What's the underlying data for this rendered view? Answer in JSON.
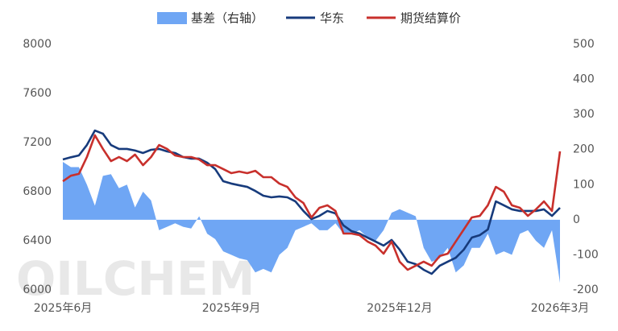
{
  "chart_data": {
    "type": "line",
    "watermark": "OILCHEM",
    "categories": [
      "2025年6月",
      null,
      null,
      null,
      null,
      null,
      null,
      null,
      null,
      null,
      null,
      null,
      null,
      null,
      null,
      null,
      null,
      null,
      null,
      null,
      null,
      "2025年9月",
      null,
      null,
      null,
      null,
      null,
      null,
      null,
      null,
      null,
      null,
      null,
      null,
      null,
      null,
      null,
      null,
      null,
      null,
      null,
      null,
      "2025年12月",
      null,
      null,
      null,
      null,
      null,
      null,
      null,
      null,
      null,
      null,
      null,
      null,
      null,
      null,
      null,
      null,
      null,
      null,
      null,
      "2026年3月"
    ],
    "series": [
      {
        "name": "基差（右轴）",
        "type": "area",
        "axis": "y2",
        "color": "#6fa6f4",
        "values": [
          165,
          150,
          150,
          100,
          40,
          125,
          130,
          90,
          100,
          35,
          80,
          55,
          -30,
          -20,
          -10,
          -20,
          -25,
          10,
          -40,
          -55,
          -90,
          -100,
          -110,
          -115,
          -150,
          -140,
          -150,
          -100,
          -80,
          -30,
          -20,
          -10,
          -30,
          -30,
          -10,
          -40,
          -40,
          -30,
          -50,
          -60,
          -30,
          20,
          30,
          20,
          10,
          -80,
          -120,
          -110,
          -80,
          -150,
          -130,
          -80,
          -80,
          -40,
          -100,
          -90,
          -100,
          -40,
          -30,
          -60,
          -80,
          -30,
          -180
        ]
      },
      {
        "name": "华东",
        "type": "line",
        "color": "#173b7c",
        "values": [
          7062,
          7080,
          7095,
          7180,
          7298,
          7272,
          7180,
          7148,
          7148,
          7135,
          7115,
          7141,
          7148,
          7128,
          7115,
          7082,
          7069,
          7069,
          7036,
          6984,
          6885,
          6866,
          6852,
          6839,
          6806,
          6767,
          6754,
          6761,
          6754,
          6721,
          6643,
          6577,
          6603,
          6643,
          6623,
          6525,
          6479,
          6459,
          6426,
          6394,
          6361,
          6407,
          6328,
          6230,
          6210,
          6164,
          6131,
          6197,
          6230,
          6262,
          6328,
          6426,
          6446,
          6492,
          6721,
          6689,
          6656,
          6643,
          6643,
          6643,
          6656,
          6603,
          6669
        ]
      },
      {
        "name": "期货结算价",
        "type": "line",
        "color": "#c8302c",
        "values": [
          6885,
          6930,
          6945,
          7082,
          7259,
          7148,
          7049,
          7082,
          7049,
          7102,
          7016,
          7082,
          7180,
          7148,
          7095,
          7082,
          7082,
          7062,
          7016,
          7016,
          6984,
          6951,
          6964,
          6951,
          6970,
          6918,
          6918,
          6866,
          6839,
          6754,
          6708,
          6590,
          6669,
          6689,
          6643,
          6459,
          6459,
          6446,
          6394,
          6361,
          6295,
          6394,
          6230,
          6164,
          6197,
          6230,
          6197,
          6276,
          6295,
          6394,
          6492,
          6590,
          6603,
          6689,
          6839,
          6800,
          6689,
          6669,
          6603,
          6656,
          6721,
          6643,
          7128
        ]
      }
    ],
    "ylim": [
      6000,
      8000
    ],
    "yticks": [
      6000,
      6400,
      6800,
      7200,
      7600,
      8000
    ],
    "y2lim": [
      -200,
      500
    ],
    "y2ticks": [
      -200,
      -100,
      0,
      100,
      200,
      300,
      400,
      500
    ],
    "grid": false,
    "legend": "top"
  }
}
